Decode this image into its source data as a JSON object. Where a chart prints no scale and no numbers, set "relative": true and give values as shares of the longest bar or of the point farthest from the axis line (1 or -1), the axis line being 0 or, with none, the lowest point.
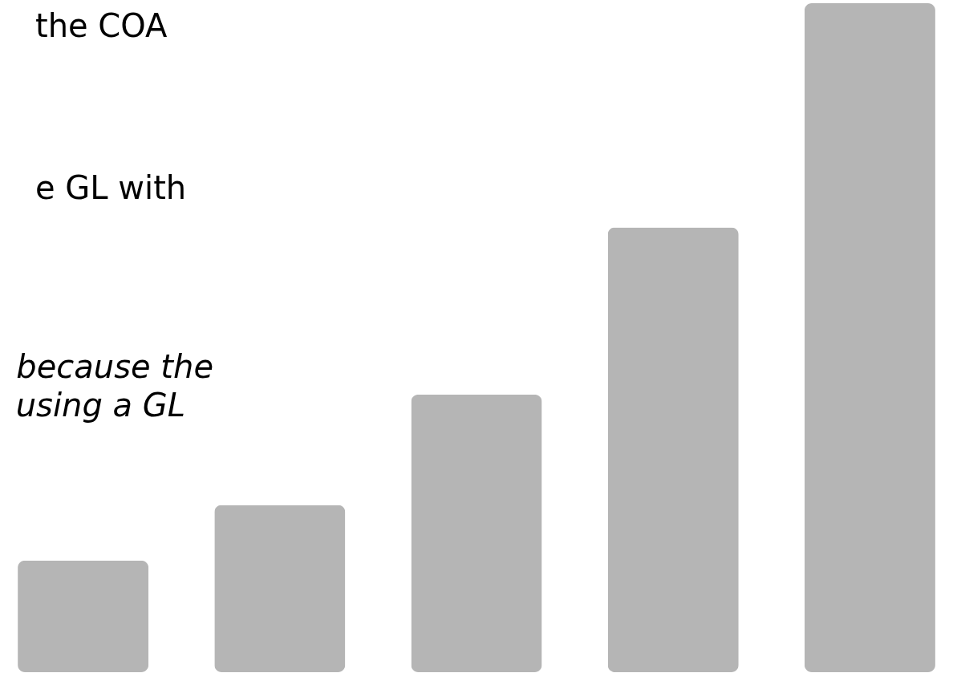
{
  "chart_data": {
    "type": "bar",
    "relative": true,
    "categories": [
      null,
      null,
      null,
      null,
      null
    ],
    "values": [
      0.167,
      0.25,
      0.415,
      0.665,
      1
    ],
    "color": "#b5b5b5",
    "annotations": [
      "the COA",
      "e GL with",
      "because the",
      "using a GL"
    ]
  }
}
